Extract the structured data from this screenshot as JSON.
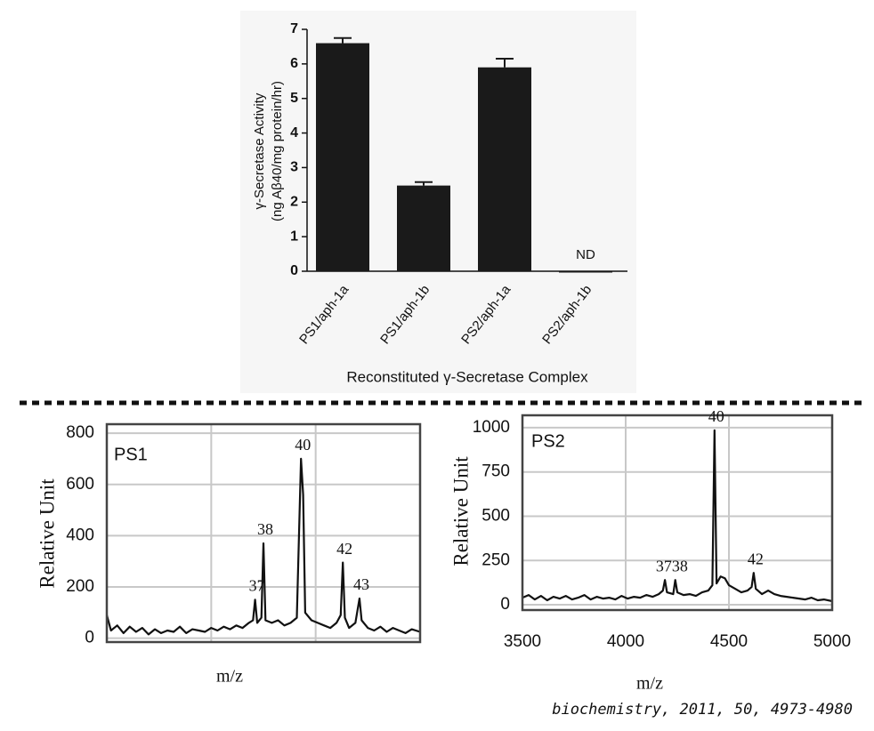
{
  "chart_data": [
    {
      "type": "bar",
      "y_label": [
        "γ-Secretase Activity",
        "(ng Aβ40/mg protein/hr)"
      ],
      "x_label": "Reconstituted γ-Secretase Complex",
      "categories": [
        "PS1/aph-1a",
        "PS1/aph-1b",
        "PS2/aph-1a",
        "PS2/aph-1b"
      ],
      "values": [
        6.6,
        2.48,
        5.9,
        0
      ],
      "errors": [
        0.15,
        0.1,
        0.25,
        0
      ],
      "annotations": [
        {
          "text": "ND",
          "category": "PS2/aph-1b"
        }
      ],
      "color": "#1a1a1a",
      "ylim": [
        0,
        7
      ],
      "yticks": [
        0,
        1,
        2,
        3,
        4,
        5,
        6,
        7
      ]
    },
    {
      "type": "line",
      "title": "PS1",
      "y_label": "Relative Unit",
      "x_label": "m/z",
      "color": "#111111",
      "x": [
        3500,
        3520,
        3550,
        3580,
        3610,
        3640,
        3670,
        3700,
        3730,
        3760,
        3790,
        3820,
        3850,
        3880,
        3910,
        3940,
        3970,
        4000,
        4030,
        4060,
        4090,
        4120,
        4150,
        4180,
        4200,
        4210,
        4220,
        4240,
        4250,
        4260,
        4290,
        4320,
        4350,
        4380,
        4410,
        4430,
        4440,
        4450,
        4480,
        4510,
        4540,
        4570,
        4600,
        4620,
        4630,
        4640,
        4660,
        4690,
        4710,
        4720,
        4750,
        4780,
        4810,
        4840,
        4870,
        4900,
        4930,
        4960,
        5000
      ],
      "values": [
        90,
        30,
        50,
        20,
        45,
        25,
        40,
        15,
        35,
        20,
        30,
        25,
        45,
        20,
        35,
        30,
        25,
        40,
        30,
        45,
        35,
        50,
        40,
        60,
        70,
        150,
        60,
        80,
        370,
        70,
        60,
        70,
        50,
        60,
        80,
        700,
        560,
        100,
        70,
        60,
        50,
        40,
        60,
        90,
        295,
        80,
        40,
        60,
        155,
        70,
        40,
        30,
        45,
        25,
        40,
        30,
        20,
        35,
        25
      ],
      "annotations": [
        {
          "text": "37",
          "x": 4210
        },
        {
          "text": "38",
          "x": 4250
        },
        {
          "text": "40",
          "x": 4430
        },
        {
          "text": "42",
          "x": 4630
        },
        {
          "text": "43",
          "x": 4710
        }
      ],
      "xlim": [
        3500,
        5000
      ],
      "ylim": [
        -15,
        835
      ],
      "yticks": [
        0,
        200,
        400,
        600,
        800
      ],
      "grid": true
    },
    {
      "type": "line",
      "title": "PS2",
      "y_label": "Relative Unit",
      "x_label": "m/z",
      "color": "#111111",
      "x": [
        3500,
        3530,
        3560,
        3590,
        3620,
        3650,
        3680,
        3710,
        3740,
        3770,
        3800,
        3830,
        3860,
        3890,
        3920,
        3950,
        3980,
        4010,
        4040,
        4070,
        4100,
        4130,
        4160,
        4180,
        4190,
        4200,
        4230,
        4240,
        4250,
        4280,
        4310,
        4340,
        4370,
        4400,
        4420,
        4430,
        4440,
        4460,
        4480,
        4500,
        4530,
        4560,
        4590,
        4610,
        4620,
        4630,
        4660,
        4690,
        4720,
        4750,
        4780,
        4810,
        4840,
        4870,
        4900,
        4930,
        4960,
        5000
      ],
      "values": [
        40,
        55,
        30,
        50,
        25,
        45,
        35,
        50,
        30,
        40,
        55,
        30,
        45,
        35,
        40,
        30,
        50,
        35,
        45,
        40,
        55,
        45,
        60,
        80,
        140,
        70,
        60,
        140,
        70,
        55,
        60,
        50,
        70,
        80,
        110,
        985,
        120,
        160,
        150,
        110,
        90,
        70,
        80,
        100,
        180,
        90,
        60,
        80,
        60,
        50,
        45,
        40,
        35,
        30,
        40,
        25,
        30,
        20
      ],
      "annotations": [
        {
          "text": "40",
          "x": 4430
        },
        {
          "text": "3738",
          "x": 4215
        },
        {
          "text": "42",
          "x": 4620
        }
      ],
      "xlim": [
        3500,
        5000
      ],
      "xticks": [
        3500,
        4000,
        4500,
        5000
      ],
      "ylim": [
        -30,
        1070
      ],
      "yticks": [
        0,
        250,
        500,
        750,
        1000
      ],
      "grid": true
    }
  ],
  "caption": "biochemistry, 2011, 50, 4973-4980"
}
